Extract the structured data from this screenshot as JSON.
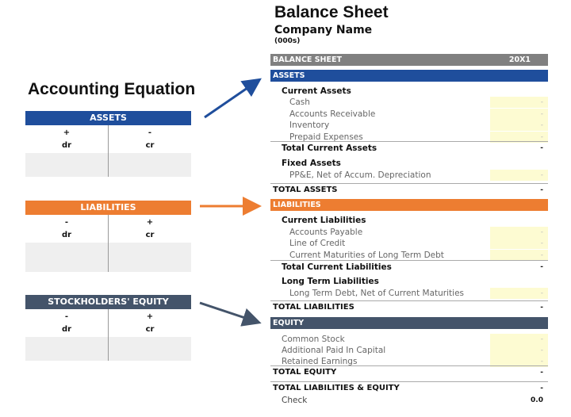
{
  "equation": {
    "title": "Accounting Equation",
    "accounts": [
      {
        "name": "ASSETS",
        "color": "#1f4e9c",
        "dr_sign": "+",
        "cr_sign": "-",
        "dr": "dr",
        "cr": "cr"
      },
      {
        "name": "LIABILITIES",
        "color": "#ed7d31",
        "dr_sign": "-",
        "cr_sign": "+",
        "dr": "dr",
        "cr": "cr"
      },
      {
        "name": "STOCKHOLDERS' EQUITY",
        "color": "#44546a",
        "dr_sign": "-",
        "cr_sign": "+",
        "dr": "dr",
        "cr": "cr"
      }
    ]
  },
  "sheet": {
    "title": "Balance Sheet",
    "company": "Company Name",
    "unit": "(000s)",
    "header": {
      "label": "BALANCE SHEET",
      "year": "20X1",
      "color": "#808080"
    },
    "sections": {
      "assets": {
        "label": "ASSETS",
        "color": "#1f4e9c"
      },
      "liabilities": {
        "label": "LIABILITIES",
        "color": "#ed7d31"
      },
      "equity": {
        "label": "EQUITY",
        "color": "#44546a"
      }
    },
    "rows": [
      {
        "label": "Current Assets",
        "type": "sub"
      },
      {
        "label": "Cash",
        "type": "input",
        "value": "-"
      },
      {
        "label": "Accounts Receivable",
        "type": "input",
        "value": "-"
      },
      {
        "label": "Inventory",
        "type": "input",
        "value": "-"
      },
      {
        "label": "Prepaid Expenses",
        "type": "input",
        "value": "-"
      },
      {
        "label": "Total Current Assets",
        "type": "total",
        "value": "-"
      },
      {
        "label": "Fixed Assets",
        "type": "sub"
      },
      {
        "label": "PP&E, Net of Accum. Depreciation",
        "type": "input",
        "value": "-"
      },
      {
        "label": "TOTAL ASSETS",
        "type": "grand",
        "value": "-"
      },
      {
        "label": "Current Liabilities",
        "type": "sub"
      },
      {
        "label": "Accounts Payable",
        "type": "input",
        "value": "-"
      },
      {
        "label": "Line of Credit",
        "type": "input",
        "value": "-"
      },
      {
        "label": "Current Maturities of Long Term Debt",
        "type": "input",
        "value": "-"
      },
      {
        "label": "Total Current Liabilities",
        "type": "total",
        "value": "-"
      },
      {
        "label": "Long Term Liabilities",
        "type": "sub"
      },
      {
        "label": "Long Term Debt, Net of Current Maturities",
        "type": "input",
        "value": "-"
      },
      {
        "label": "TOTAL LIABILITIES",
        "type": "grand",
        "value": "-"
      },
      {
        "label": "Common Stock",
        "type": "input2",
        "value": "-"
      },
      {
        "label": "Additional Paid In Capital",
        "type": "input2",
        "value": "-"
      },
      {
        "label": "Retained Earnings",
        "type": "input2",
        "value": "-"
      },
      {
        "label": "TOTAL EQUITY",
        "type": "grand",
        "value": "-"
      },
      {
        "label": "TOTAL LIABILITIES & EQUITY",
        "type": "grand",
        "value": "-"
      },
      {
        "label": "Check",
        "type": "check",
        "value": "0.0"
      }
    ]
  }
}
